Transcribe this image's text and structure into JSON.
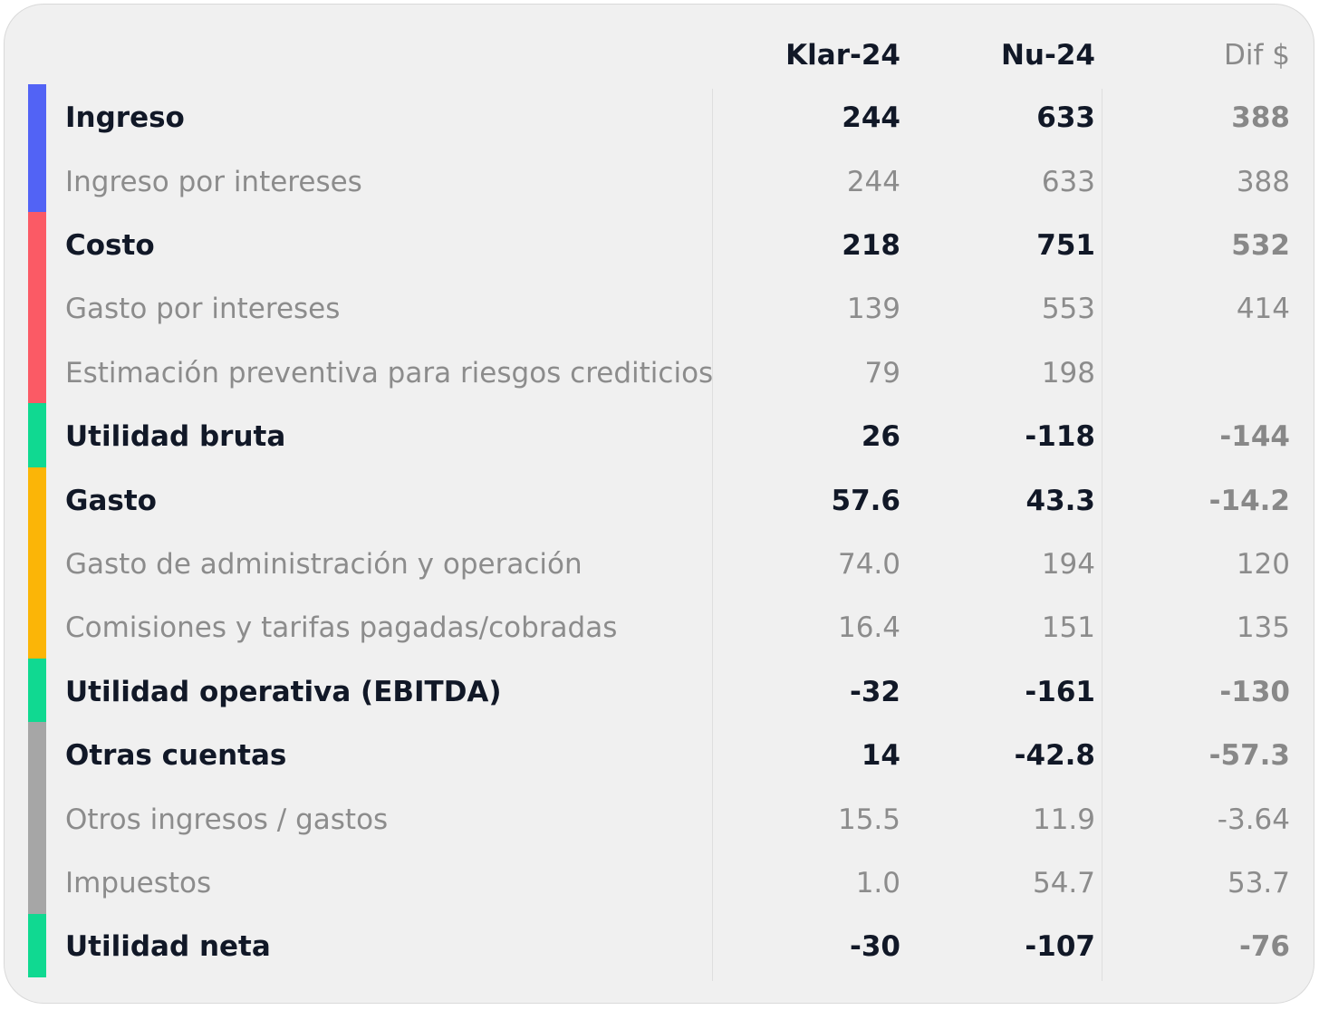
{
  "colors": {
    "ingreso": "#5263f5",
    "costo": "#fb5a65",
    "utilidad": "#10d991",
    "gasto": "#fbb507",
    "otras": "#a6a6a6"
  },
  "header": {
    "col1": "Klar-24",
    "col2": "Nu-24",
    "col3": "Dif $"
  },
  "rows": [
    {
      "label": "Ingreso",
      "klar": "244",
      "nu": "633",
      "dif": "388"
    },
    {
      "label": "Ingreso por intereses",
      "klar": "244",
      "nu": "633",
      "dif": "388"
    },
    {
      "label": "Costo",
      "klar": "218",
      "nu": "751",
      "dif": "532"
    },
    {
      "label": "Gasto por intereses",
      "klar": "139",
      "nu": "553",
      "dif": "414"
    },
    {
      "label": "Estimación preventiva para riesgos crediticios",
      "klar": "79",
      "nu": "198",
      "dif": ""
    },
    {
      "label": "Utilidad bruta",
      "klar": "26",
      "nu": "-118",
      "dif": "-144"
    },
    {
      "label": "Gasto",
      "klar": "57.6",
      "nu": "43.3",
      "dif": "-14.2"
    },
    {
      "label": "Gasto de administración y operación",
      "klar": "74.0",
      "nu": "194",
      "dif": "120"
    },
    {
      "label": "Comisiones y tarifas pagadas/cobradas",
      "klar": "16.4",
      "nu": "151",
      "dif": "135"
    },
    {
      "label": "Utilidad operativa (EBITDA)",
      "klar": "-32",
      "nu": "-161",
      "dif": "-130"
    },
    {
      "label": "Otras cuentas",
      "klar": "14",
      "nu": "-42.8",
      "dif": "-57.3"
    },
    {
      "label": "Otros ingresos / gastos",
      "klar": "15.5",
      "nu": "11.9",
      "dif": "-3.64"
    },
    {
      "label": "Impuestos",
      "klar": "1.0",
      "nu": "54.7",
      "dif": "53.7"
    },
    {
      "label": "Utilidad neta",
      "klar": "-30",
      "nu": "-107",
      "dif": "-76"
    }
  ]
}
